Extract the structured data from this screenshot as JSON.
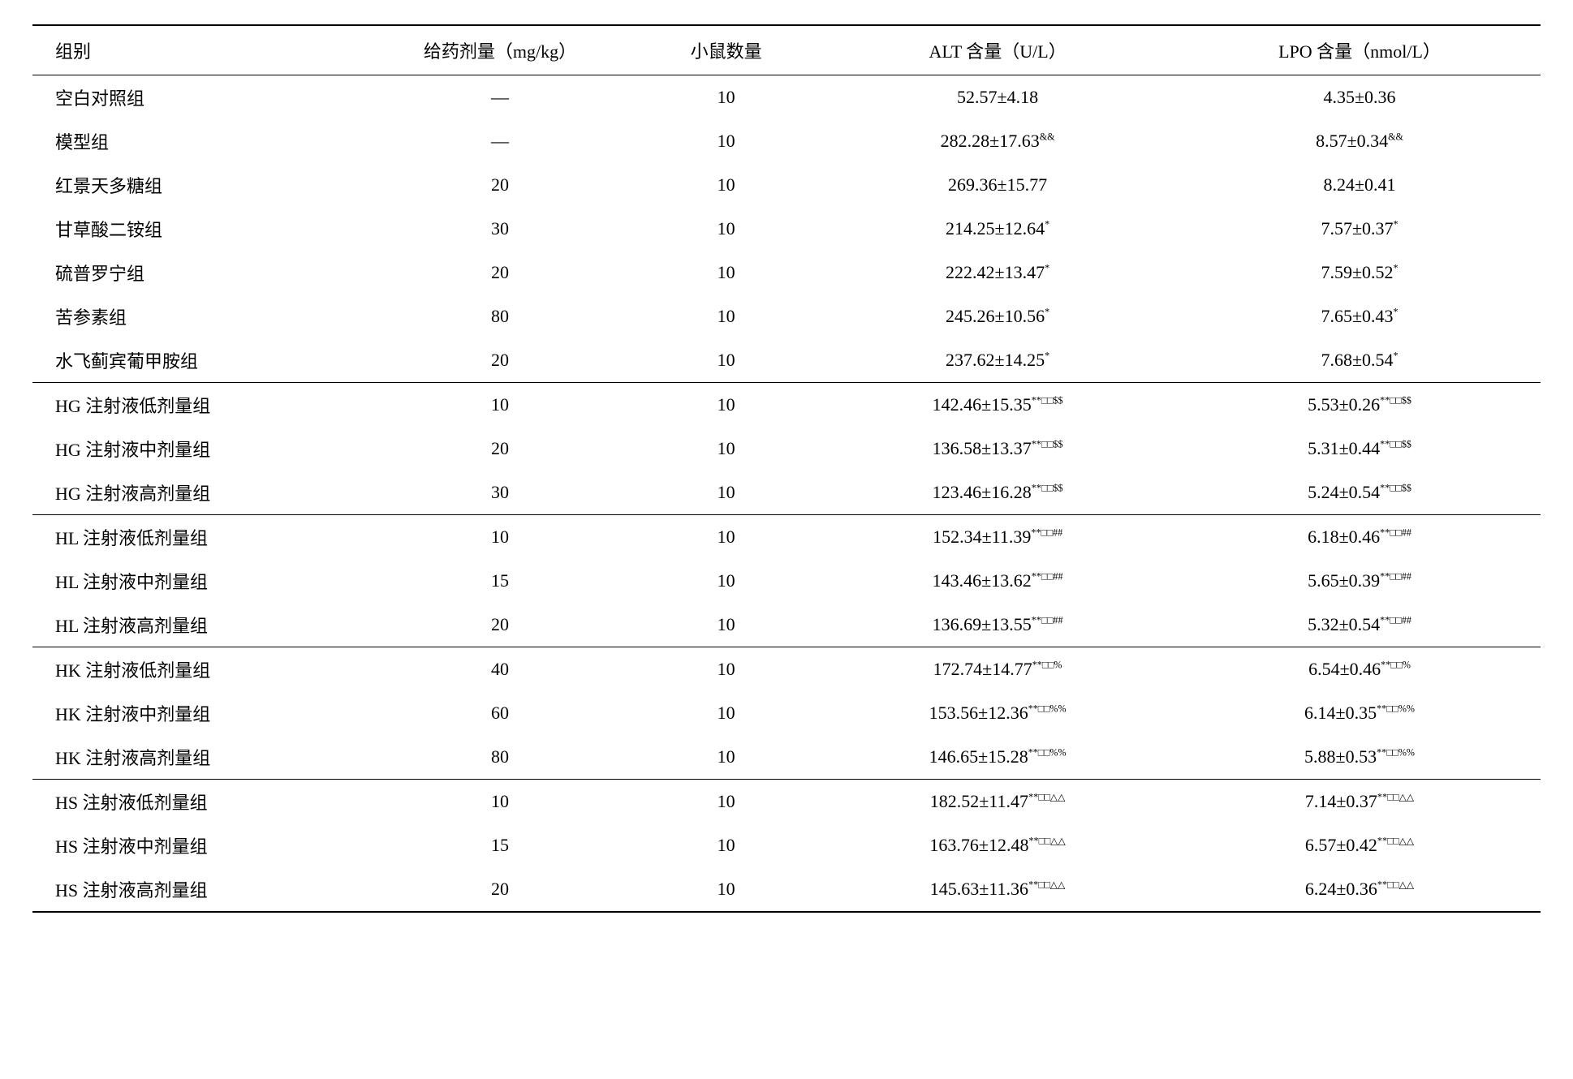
{
  "headers": {
    "group": "组别",
    "dose": "给药剂量（mg/kg）",
    "mice": "小鼠数量",
    "alt": "ALT 含量（U/L）",
    "lpo": "LPO 含量（nmol/L）"
  },
  "rows": [
    {
      "group": "空白对照组",
      "dose": "—",
      "mice": "10",
      "alt_val": "52.57±4.18",
      "alt_sup": "",
      "lpo_val": "4.35±0.36",
      "lpo_sup": "",
      "sep": false
    },
    {
      "group": "模型组",
      "dose": "—",
      "mice": "10",
      "alt_val": "282.28±17.63",
      "alt_sup": "&&",
      "lpo_val": "8.57±0.34",
      "lpo_sup": "&&",
      "sep": false
    },
    {
      "group": "红景天多糖组",
      "dose": "20",
      "mice": "10",
      "alt_val": "269.36±15.77",
      "alt_sup": "",
      "lpo_val": "8.24±0.41",
      "lpo_sup": "",
      "sep": false
    },
    {
      "group": "甘草酸二铵组",
      "dose": "30",
      "mice": "10",
      "alt_val": "214.25±12.64",
      "alt_sup": "*",
      "lpo_val": "7.57±0.37",
      "lpo_sup": "*",
      "sep": false
    },
    {
      "group": "硫普罗宁组",
      "dose": "20",
      "mice": "10",
      "alt_val": "222.42±13.47",
      "alt_sup": "*",
      "lpo_val": "7.59±0.52",
      "lpo_sup": "*",
      "sep": false
    },
    {
      "group": "苦参素组",
      "dose": "80",
      "mice": "10",
      "alt_val": "245.26±10.56",
      "alt_sup": "*",
      "lpo_val": "7.65±0.43",
      "lpo_sup": "*",
      "sep": false
    },
    {
      "group": "水飞蓟宾葡甲胺组",
      "dose": "20",
      "mice": "10",
      "alt_val": "237.62±14.25",
      "alt_sup": "*",
      "lpo_val": "7.68±0.54",
      "lpo_sup": "*",
      "sep": false
    },
    {
      "group": "HG 注射液低剂量组",
      "dose": "10",
      "mice": "10",
      "alt_val": "142.46±15.35",
      "alt_sup": "**□□$$",
      "lpo_val": "5.53±0.26",
      "lpo_sup": "**□□$$",
      "sep": true
    },
    {
      "group": "HG 注射液中剂量组",
      "dose": "20",
      "mice": "10",
      "alt_val": "136.58±13.37",
      "alt_sup": "**□□$$",
      "lpo_val": "5.31±0.44",
      "lpo_sup": "**□□$$",
      "sep": false
    },
    {
      "group": "HG 注射液高剂量组",
      "dose": "30",
      "mice": "10",
      "alt_val": "123.46±16.28",
      "alt_sup": "**□□$$",
      "lpo_val": "5.24±0.54",
      "lpo_sup": "**□□$$",
      "sep": false
    },
    {
      "group": "HL 注射液低剂量组",
      "dose": "10",
      "mice": "10",
      "alt_val": "152.34±11.39",
      "alt_sup": "**□□##",
      "lpo_val": "6.18±0.46",
      "lpo_sup": "**□□##",
      "sep": true
    },
    {
      "group": "HL 注射液中剂量组",
      "dose": "15",
      "mice": "10",
      "alt_val": "143.46±13.62",
      "alt_sup": "**□□##",
      "lpo_val": "5.65±0.39",
      "lpo_sup": "**□□##",
      "sep": false
    },
    {
      "group": "HL 注射液高剂量组",
      "dose": "20",
      "mice": "10",
      "alt_val": "136.69±13.55",
      "alt_sup": "**□□##",
      "lpo_val": "5.32±0.54",
      "lpo_sup": "**□□##",
      "sep": false
    },
    {
      "group": "HK 注射液低剂量组",
      "dose": "40",
      "mice": "10",
      "alt_val": "172.74±14.77",
      "alt_sup": "**□□%",
      "lpo_val": "6.54±0.46",
      "lpo_sup": "**□□%",
      "sep": true
    },
    {
      "group": "HK 注射液中剂量组",
      "dose": "60",
      "mice": "10",
      "alt_val": "153.56±12.36",
      "alt_sup": "**□□%%",
      "lpo_val": "6.14±0.35",
      "lpo_sup": "**□□%%",
      "sep": false
    },
    {
      "group": "HK 注射液高剂量组",
      "dose": "80",
      "mice": "10",
      "alt_val": "146.65±15.28",
      "alt_sup": "**□□%%",
      "lpo_val": "5.88±0.53",
      "lpo_sup": "**□□%%",
      "sep": false
    },
    {
      "group": "HS 注射液低剂量组",
      "dose": "10",
      "mice": "10",
      "alt_val": "182.52±11.47",
      "alt_sup": "**□□△△",
      "lpo_val": "7.14±0.37",
      "lpo_sup": "**□□△△",
      "sep": true
    },
    {
      "group": "HS 注射液中剂量组",
      "dose": "15",
      "mice": "10",
      "alt_val": "163.76±12.48",
      "alt_sup": "**□□△△",
      "lpo_val": "6.57±0.42",
      "lpo_sup": "**□□△△",
      "sep": false
    },
    {
      "group": "HS 注射液高剂量组",
      "dose": "20",
      "mice": "10",
      "alt_val": "145.63±11.36",
      "alt_sup": "**□□△△",
      "lpo_val": "6.24±0.36",
      "lpo_sup": "**□□△△",
      "sep": false
    }
  ]
}
